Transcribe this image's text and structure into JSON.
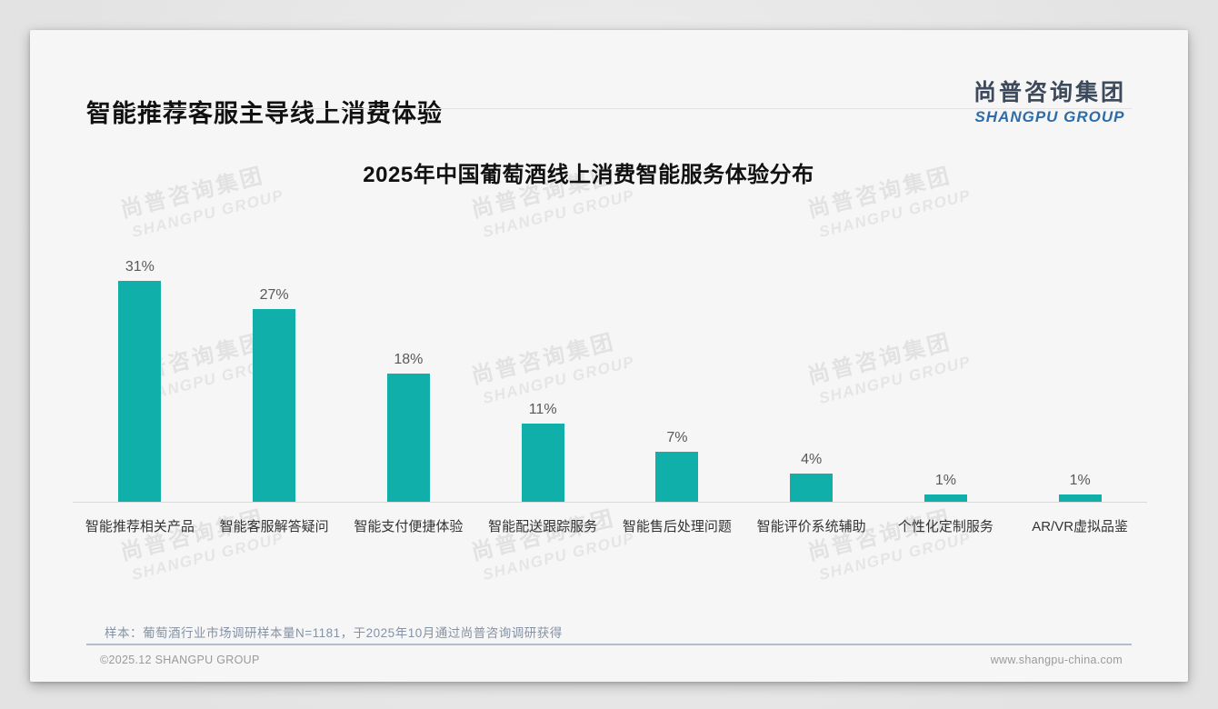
{
  "page": {
    "title": "智能推荐客服主导线上消费体验",
    "logo": {
      "cn": "尚普咨询集团",
      "en": "SHANGPU GROUP"
    },
    "watermark": {
      "cn": "尚普咨询集团",
      "en": "SHANGPU GROUP"
    },
    "note": "样本：葡萄酒行业市场调研样本量N=1181，于2025年10月通过尚普咨询调研获得",
    "footer": {
      "copyright": "©2025.12 SHANGPU GROUP",
      "website": "www.shangpu-china.com"
    }
  },
  "chart_data": {
    "type": "bar",
    "title": "2025年中国葡萄酒线上消费智能服务体验分布",
    "categories": [
      "智能推荐相关产品",
      "智能客服解答疑问",
      "智能支付便捷体验",
      "智能配送跟踪服务",
      "智能售后处理问题",
      "智能评价系统辅助",
      "个性化定制服务",
      "AR/VR虚拟品鉴"
    ],
    "values": [
      31,
      27,
      18,
      11,
      7,
      4,
      1,
      1
    ],
    "value_labels": [
      "31%",
      "27%",
      "18%",
      "11%",
      "7%",
      "4%",
      "1%",
      "1%"
    ],
    "bar_color": "#10afaa",
    "axis_color": "#d9d9d9",
    "ylim": [
      0,
      35
    ],
    "xlabel": "",
    "ylabel": "",
    "grid": false,
    "legend": false
  }
}
